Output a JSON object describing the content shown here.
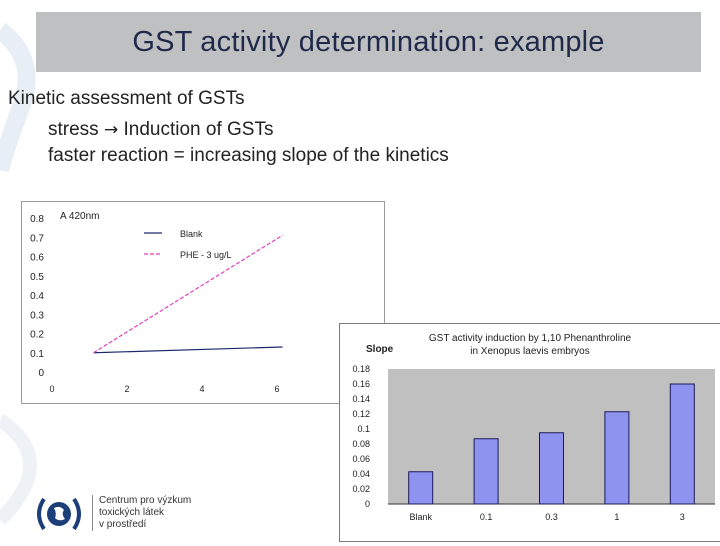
{
  "slide": {
    "title": "GST activity determination: example",
    "line1": "Kinetic assessment of GSTs",
    "line2_before": "stress ",
    "line2_arrow": "→",
    "line2_after": " Induction of GSTs",
    "line3": "faster reaction = increasing slope of the kinetics"
  },
  "logo": {
    "line1": "Centrum pro výzkum",
    "line2": "toxických látek",
    "line3": "v prostředí"
  },
  "colors": {
    "title_bg": "#bfc0c2",
    "bar_fill": "#8f93f0",
    "plot_bg": "#c0c0c0",
    "series_blank": "#1a2a6c",
    "series_phe": "#e040c0"
  },
  "chart_data": [
    {
      "type": "line",
      "title": "A 420nm",
      "x": [
        0.5,
        8.7
      ],
      "xticks": [
        "0",
        "2",
        "4",
        "6"
      ],
      "yticks": [
        "0",
        "0.1",
        "0.2",
        "0.3",
        "0.4",
        "0.5",
        "0.6",
        "0.7",
        "0.8"
      ],
      "ylim": [
        0,
        0.8
      ],
      "xlim": [
        0,
        10
      ],
      "series": [
        {
          "name": "Blank",
          "x": [
            1,
            7
          ],
          "values": [
            0.1,
            0.13
          ]
        },
        {
          "name": "PHE - 3 ug/L",
          "x": [
            1,
            7
          ],
          "values": [
            0.1,
            0.71
          ]
        }
      ]
    },
    {
      "type": "bar",
      "title": "GST activity induction by 1,10 Phenanthroline",
      "subtitle": "in Xenopus laevis embryos",
      "ylabel": "Slope",
      "categories": [
        "Blank",
        "0.1",
        "0.3",
        "1",
        "3"
      ],
      "values": [
        0.043,
        0.087,
        0.095,
        0.123,
        0.16
      ],
      "yticks": [
        "0",
        "0.02",
        "0.04",
        "0.06",
        "0.08",
        "0.1",
        "0.12",
        "0.14",
        "0.16",
        "0.18"
      ],
      "ylim": [
        0,
        0.18
      ]
    }
  ]
}
